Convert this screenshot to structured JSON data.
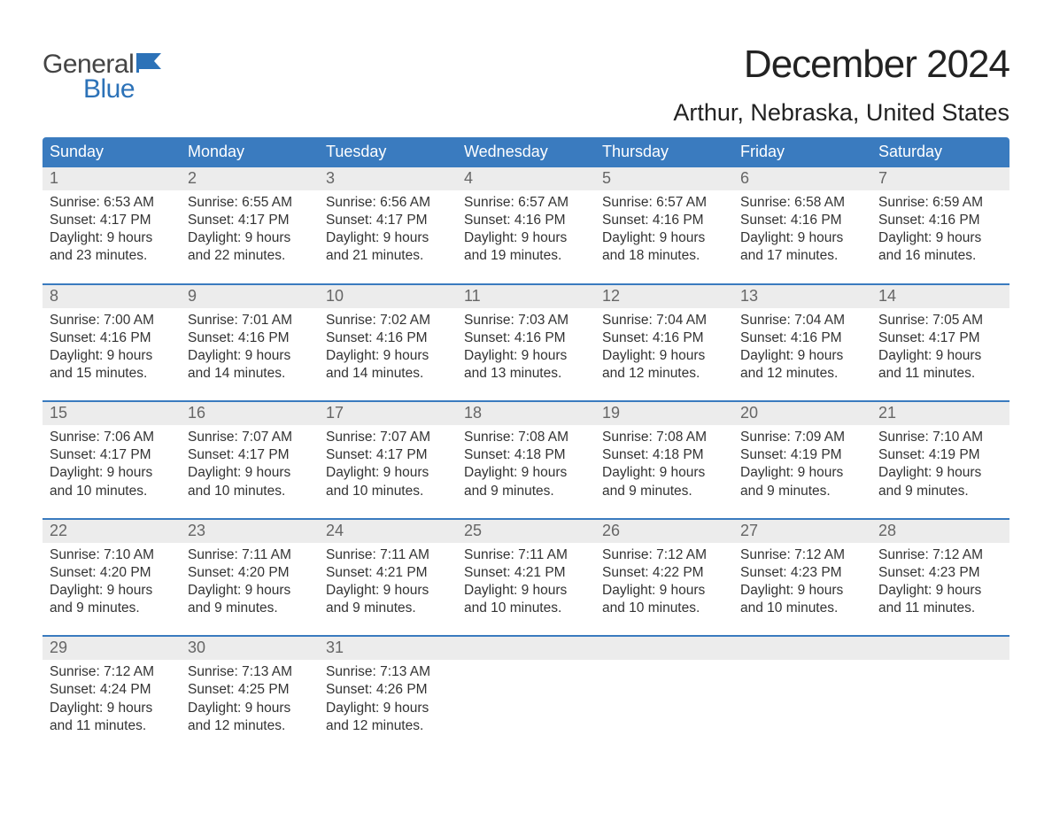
{
  "logo": {
    "general": "General",
    "blue": "Blue"
  },
  "title": "December 2024",
  "location": "Arthur, Nebraska, United States",
  "colors": {
    "header_bg": "#3a7bbf",
    "daynum_bg": "#ececec",
    "text": "#333333",
    "blue": "#2c72b8"
  },
  "daysOfWeek": [
    "Sunday",
    "Monday",
    "Tuesday",
    "Wednesday",
    "Thursday",
    "Friday",
    "Saturday"
  ],
  "weeks": [
    [
      {
        "n": "1",
        "sr": "6:53 AM",
        "ss": "4:17 PM",
        "dl": "9 hours and 23 minutes."
      },
      {
        "n": "2",
        "sr": "6:55 AM",
        "ss": "4:17 PM",
        "dl": "9 hours and 22 minutes."
      },
      {
        "n": "3",
        "sr": "6:56 AM",
        "ss": "4:17 PM",
        "dl": "9 hours and 21 minutes."
      },
      {
        "n": "4",
        "sr": "6:57 AM",
        "ss": "4:16 PM",
        "dl": "9 hours and 19 minutes."
      },
      {
        "n": "5",
        "sr": "6:57 AM",
        "ss": "4:16 PM",
        "dl": "9 hours and 18 minutes."
      },
      {
        "n": "6",
        "sr": "6:58 AM",
        "ss": "4:16 PM",
        "dl": "9 hours and 17 minutes."
      },
      {
        "n": "7",
        "sr": "6:59 AM",
        "ss": "4:16 PM",
        "dl": "9 hours and 16 minutes."
      }
    ],
    [
      {
        "n": "8",
        "sr": "7:00 AM",
        "ss": "4:16 PM",
        "dl": "9 hours and 15 minutes."
      },
      {
        "n": "9",
        "sr": "7:01 AM",
        "ss": "4:16 PM",
        "dl": "9 hours and 14 minutes."
      },
      {
        "n": "10",
        "sr": "7:02 AM",
        "ss": "4:16 PM",
        "dl": "9 hours and 14 minutes."
      },
      {
        "n": "11",
        "sr": "7:03 AM",
        "ss": "4:16 PM",
        "dl": "9 hours and 13 minutes."
      },
      {
        "n": "12",
        "sr": "7:04 AM",
        "ss": "4:16 PM",
        "dl": "9 hours and 12 minutes."
      },
      {
        "n": "13",
        "sr": "7:04 AM",
        "ss": "4:16 PM",
        "dl": "9 hours and 12 minutes."
      },
      {
        "n": "14",
        "sr": "7:05 AM",
        "ss": "4:17 PM",
        "dl": "9 hours and 11 minutes."
      }
    ],
    [
      {
        "n": "15",
        "sr": "7:06 AM",
        "ss": "4:17 PM",
        "dl": "9 hours and 10 minutes."
      },
      {
        "n": "16",
        "sr": "7:07 AM",
        "ss": "4:17 PM",
        "dl": "9 hours and 10 minutes."
      },
      {
        "n": "17",
        "sr": "7:07 AM",
        "ss": "4:17 PM",
        "dl": "9 hours and 10 minutes."
      },
      {
        "n": "18",
        "sr": "7:08 AM",
        "ss": "4:18 PM",
        "dl": "9 hours and 9 minutes."
      },
      {
        "n": "19",
        "sr": "7:08 AM",
        "ss": "4:18 PM",
        "dl": "9 hours and 9 minutes."
      },
      {
        "n": "20",
        "sr": "7:09 AM",
        "ss": "4:19 PM",
        "dl": "9 hours and 9 minutes."
      },
      {
        "n": "21",
        "sr": "7:10 AM",
        "ss": "4:19 PM",
        "dl": "9 hours and 9 minutes."
      }
    ],
    [
      {
        "n": "22",
        "sr": "7:10 AM",
        "ss": "4:20 PM",
        "dl": "9 hours and 9 minutes."
      },
      {
        "n": "23",
        "sr": "7:11 AM",
        "ss": "4:20 PM",
        "dl": "9 hours and 9 minutes."
      },
      {
        "n": "24",
        "sr": "7:11 AM",
        "ss": "4:21 PM",
        "dl": "9 hours and 9 minutes."
      },
      {
        "n": "25",
        "sr": "7:11 AM",
        "ss": "4:21 PM",
        "dl": "9 hours and 10 minutes."
      },
      {
        "n": "26",
        "sr": "7:12 AM",
        "ss": "4:22 PM",
        "dl": "9 hours and 10 minutes."
      },
      {
        "n": "27",
        "sr": "7:12 AM",
        "ss": "4:23 PM",
        "dl": "9 hours and 10 minutes."
      },
      {
        "n": "28",
        "sr": "7:12 AM",
        "ss": "4:23 PM",
        "dl": "9 hours and 11 minutes."
      }
    ],
    [
      {
        "n": "29",
        "sr": "7:12 AM",
        "ss": "4:24 PM",
        "dl": "9 hours and 11 minutes."
      },
      {
        "n": "30",
        "sr": "7:13 AM",
        "ss": "4:25 PM",
        "dl": "9 hours and 12 minutes."
      },
      {
        "n": "31",
        "sr": "7:13 AM",
        "ss": "4:26 PM",
        "dl": "9 hours and 12 minutes."
      },
      null,
      null,
      null,
      null
    ]
  ],
  "labels": {
    "sunrise": "Sunrise:",
    "sunset": "Sunset:",
    "daylight": "Daylight:"
  }
}
